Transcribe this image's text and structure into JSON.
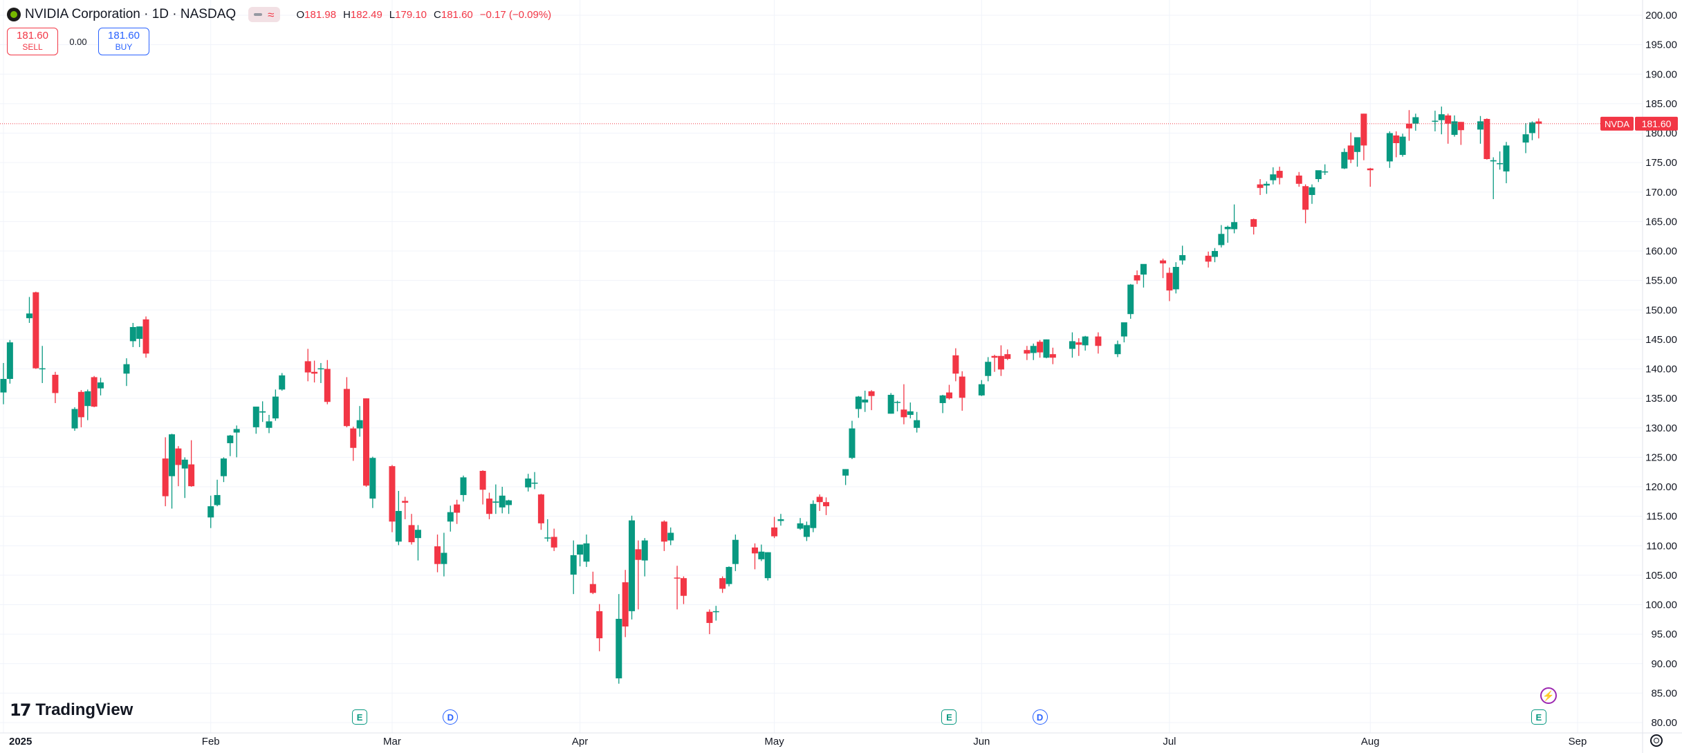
{
  "header": {
    "symbol_title": "NVIDIA Corporation · 1D · NASDAQ",
    "ohlc": {
      "open_label": "O",
      "open": "181.98",
      "high_label": "H",
      "high": "182.49",
      "low_label": "L",
      "low": "179.10",
      "close_label": "C",
      "close": "181.60",
      "change": "−0.17 (−0.09%)"
    }
  },
  "trade": {
    "sell_price": "181.60",
    "sell_label": "SELL",
    "spread": "0.00",
    "buy_price": "181.60",
    "buy_label": "BUY"
  },
  "brand": {
    "name": "TradingView"
  },
  "events": [
    {
      "label": "E",
      "kind": "earnings",
      "date": "2025-02-26"
    },
    {
      "label": "D",
      "kind": "dividend",
      "date": "2025-03-12"
    },
    {
      "label": "E",
      "kind": "earnings",
      "date": "2025-05-28"
    },
    {
      "label": "D",
      "kind": "dividend",
      "date": "2025-06-11"
    },
    {
      "label": "E",
      "kind": "earnings",
      "date": "2025-08-27"
    }
  ],
  "colors": {
    "up": "#089981",
    "down": "#f23645",
    "grid": "#f0f3fa",
    "price_line": "#f23645"
  },
  "chart_data": {
    "type": "candlestick",
    "symbol": "NVDA",
    "last_price": 181.6,
    "ylim": [
      80,
      200
    ],
    "y_ticks": [
      80,
      85,
      90,
      95,
      100,
      105,
      110,
      115,
      120,
      125,
      130,
      135,
      140,
      145,
      150,
      155,
      160,
      165,
      170,
      175,
      180,
      185,
      190,
      195,
      200
    ],
    "y_tick_labels": [
      "80.00",
      "85.00",
      "90.00",
      "95.00",
      "100.00",
      "105.00",
      "110.00",
      "115.00",
      "120.00",
      "125.00",
      "130.00",
      "135.00",
      "140.00",
      "145.00",
      "150.00",
      "155.00",
      "160.00",
      "165.00",
      "170.00",
      "175.00",
      "180.00",
      "185.00",
      "190.00",
      "195.00",
      "200.00"
    ],
    "x_range": [
      "2025-01-02",
      "2025-09-02"
    ],
    "x_ticks": [
      {
        "date": "2025-01-02",
        "label": "2025",
        "bold": true
      },
      {
        "date": "2025-02-03",
        "label": "Feb"
      },
      {
        "date": "2025-03-03",
        "label": "Mar"
      },
      {
        "date": "2025-04-01",
        "label": "Apr"
      },
      {
        "date": "2025-05-01",
        "label": "May"
      },
      {
        "date": "2025-06-02",
        "label": "Jun"
      },
      {
        "date": "2025-07-01",
        "label": "Jul"
      },
      {
        "date": "2025-08-01",
        "label": "Aug"
      },
      {
        "date": "2025-09-02",
        "label": "Sep"
      }
    ],
    "candles": [
      [
        "2025-01-02",
        136.0,
        141.0,
        134.0,
        138.3
      ],
      [
        "2025-01-03",
        138.3,
        144.9,
        137.5,
        144.5
      ],
      [
        "2025-01-06",
        148.6,
        152.2,
        147.8,
        149.4
      ],
      [
        "2025-01-07",
        153.0,
        153.1,
        140.0,
        140.1
      ],
      [
        "2025-01-08",
        140.1,
        143.9,
        137.6,
        140.1
      ],
      [
        "2025-01-10",
        139.0,
        139.5,
        134.2,
        135.9
      ],
      [
        "2025-01-13",
        129.9,
        133.5,
        129.5,
        133.2
      ],
      [
        "2025-01-14",
        136.1,
        136.4,
        130.1,
        131.8
      ],
      [
        "2025-01-15",
        133.7,
        136.5,
        131.3,
        136.2
      ],
      [
        "2025-01-16",
        138.6,
        138.8,
        133.5,
        133.6
      ],
      [
        "2025-01-17",
        136.7,
        138.5,
        135.5,
        137.7
      ],
      [
        "2025-01-21",
        139.2,
        141.8,
        137.1,
        140.8
      ],
      [
        "2025-01-22",
        144.7,
        147.8,
        143.7,
        147.1
      ],
      [
        "2025-01-23",
        145.1,
        147.2,
        143.7,
        147.2
      ],
      [
        "2025-01-24",
        148.4,
        148.9,
        141.9,
        142.6
      ],
      [
        "2025-01-27",
        124.8,
        128.4,
        116.7,
        118.4
      ],
      [
        "2025-01-28",
        121.8,
        129.0,
        116.3,
        128.9
      ],
      [
        "2025-01-29",
        126.5,
        126.9,
        120.1,
        123.7
      ],
      [
        "2025-01-30",
        123.1,
        125.0,
        118.1,
        124.6
      ],
      [
        "2025-01-31",
        123.8,
        127.9,
        120.0,
        120.1
      ],
      [
        "2025-02-03",
        114.8,
        118.5,
        113.0,
        116.7
      ],
      [
        "2025-02-04",
        116.9,
        121.2,
        116.7,
        118.6
      ],
      [
        "2025-02-05",
        121.8,
        125.0,
        120.8,
        124.8
      ],
      [
        "2025-02-06",
        127.4,
        128.8,
        125.2,
        128.7
      ],
      [
        "2025-02-07",
        129.2,
        130.4,
        125.0,
        129.8
      ],
      [
        "2025-02-10",
        130.1,
        133.0,
        129.0,
        133.6
      ],
      [
        "2025-02-11",
        132.6,
        134.5,
        131.0,
        132.8
      ],
      [
        "2025-02-12",
        130.0,
        132.2,
        129.1,
        131.1
      ],
      [
        "2025-02-13",
        131.6,
        136.5,
        131.2,
        135.3
      ],
      [
        "2025-02-14",
        136.5,
        139.3,
        136.3,
        138.9
      ],
      [
        "2025-02-18",
        141.3,
        143.4,
        137.9,
        139.4
      ],
      [
        "2025-02-19",
        139.5,
        141.4,
        137.7,
        139.2
      ],
      [
        "2025-02-20",
        140.0,
        141.0,
        137.6,
        140.1
      ],
      [
        "2025-02-21",
        140.0,
        141.5,
        134.0,
        134.4
      ],
      [
        "2025-02-24",
        136.6,
        138.6,
        130.1,
        130.3
      ],
      [
        "2025-02-25",
        129.9,
        130.2,
        124.4,
        126.6
      ],
      [
        "2025-02-26",
        129.9,
        133.7,
        128.5,
        131.3
      ],
      [
        "2025-02-27",
        135.0,
        135.0,
        120.0,
        120.2
      ],
      [
        "2025-02-28",
        118.0,
        125.1,
        116.4,
        124.9
      ],
      [
        "2025-03-03",
        123.5,
        123.7,
        112.3,
        114.1
      ],
      [
        "2025-03-04",
        110.7,
        119.3,
        110.1,
        115.9
      ],
      [
        "2025-03-05",
        117.6,
        118.3,
        114.5,
        117.3
      ],
      [
        "2025-03-06",
        113.5,
        115.4,
        110.2,
        110.6
      ],
      [
        "2025-03-07",
        111.3,
        113.5,
        107.5,
        112.7
      ],
      [
        "2025-03-10",
        109.9,
        111.9,
        105.5,
        106.9
      ],
      [
        "2025-03-11",
        106.9,
        112.2,
        104.8,
        108.8
      ],
      [
        "2025-03-12",
        114.1,
        116.8,
        112.4,
        115.7
      ],
      [
        "2025-03-13",
        117.0,
        117.8,
        113.7,
        115.6
      ],
      [
        "2025-03-14",
        118.6,
        121.9,
        117.5,
        121.6
      ],
      [
        "2025-03-17",
        122.7,
        122.8,
        117.0,
        119.5
      ],
      [
        "2025-03-18",
        118.0,
        119.0,
        114.5,
        115.4
      ],
      [
        "2025-03-19",
        117.3,
        120.4,
        115.4,
        117.5
      ],
      [
        "2025-03-20",
        116.5,
        120.0,
        115.5,
        118.5
      ],
      [
        "2025-03-21",
        116.9,
        117.8,
        115.4,
        117.7
      ],
      [
        "2025-03-24",
        119.9,
        122.2,
        119.2,
        121.4
      ],
      [
        "2025-03-25",
        120.6,
        122.5,
        119.6,
        120.7
      ],
      [
        "2025-03-26",
        118.7,
        118.8,
        112.7,
        113.8
      ],
      [
        "2025-03-27",
        111.4,
        114.5,
        110.7,
        111.4
      ],
      [
        "2025-03-28",
        111.5,
        112.9,
        109.1,
        109.7
      ],
      [
        "2025-03-31",
        105.1,
        110.9,
        101.8,
        108.4
      ],
      [
        "2025-04-01",
        108.5,
        110.2,
        106.5,
        110.2
      ],
      [
        "2025-04-02",
        107.3,
        111.9,
        106.4,
        110.4
      ],
      [
        "2025-04-03",
        103.5,
        105.6,
        101.8,
        102.0
      ],
      [
        "2025-04-04",
        98.9,
        100.1,
        92.1,
        94.3
      ],
      [
        "2025-04-07",
        87.5,
        101.8,
        86.6,
        97.6
      ],
      [
        "2025-04-08",
        103.8,
        105.9,
        94.5,
        96.3
      ],
      [
        "2025-04-09",
        98.9,
        115.1,
        97.5,
        114.3
      ],
      [
        "2025-04-10",
        109.4,
        110.9,
        99.2,
        107.6
      ],
      [
        "2025-04-11",
        107.5,
        111.3,
        104.8,
        110.9
      ],
      [
        "2025-04-14",
        114.1,
        114.3,
        109.1,
        110.7
      ],
      [
        "2025-04-15",
        110.9,
        113.1,
        110.1,
        112.2
      ],
      [
        "2025-04-16",
        104.6,
        106.6,
        99.2,
        104.5
      ],
      [
        "2025-04-17",
        104.5,
        104.8,
        100.1,
        101.5
      ],
      [
        "2025-04-21",
        98.8,
        99.2,
        95.0,
        96.9
      ],
      [
        "2025-04-22",
        98.8,
        99.8,
        97.3,
        98.9
      ],
      [
        "2025-04-23",
        104.5,
        104.8,
        102.0,
        102.7
      ],
      [
        "2025-04-24",
        103.5,
        106.5,
        103.1,
        106.4
      ],
      [
        "2025-04-25",
        106.9,
        111.9,
        105.7,
        111.0
      ],
      [
        "2025-04-28",
        109.7,
        110.4,
        106.0,
        108.7
      ],
      [
        "2025-04-29",
        107.7,
        110.2,
        107.4,
        109.0
      ],
      [
        "2025-04-30",
        104.5,
        108.9,
        104.1,
        108.9
      ],
      [
        "2025-05-01",
        113.1,
        114.9,
        111.3,
        111.6
      ],
      [
        "2025-05-02",
        114.2,
        115.4,
        113.4,
        114.5
      ],
      [
        "2025-05-05",
        112.9,
        114.7,
        112.7,
        113.8
      ],
      [
        "2025-05-06",
        111.5,
        114.1,
        110.8,
        113.5
      ],
      [
        "2025-05-07",
        113.0,
        117.7,
        112.3,
        117.1
      ],
      [
        "2025-05-08",
        118.3,
        118.7,
        115.9,
        117.4
      ],
      [
        "2025-05-09",
        117.4,
        118.2,
        115.2,
        116.7
      ],
      [
        "2025-05-12",
        121.9,
        123.0,
        120.3,
        123.0
      ],
      [
        "2025-05-13",
        124.9,
        131.2,
        124.7,
        129.9
      ],
      [
        "2025-05-14",
        133.2,
        135.4,
        131.7,
        135.3
      ],
      [
        "2025-05-15",
        134.3,
        136.3,
        132.7,
        134.8
      ],
      [
        "2025-05-16",
        136.2,
        136.4,
        133.0,
        135.4
      ],
      [
        "2025-05-19",
        132.4,
        135.9,
        132.4,
        135.6
      ],
      [
        "2025-05-20",
        134.3,
        134.6,
        132.8,
        134.4
      ],
      [
        "2025-05-21",
        133.1,
        137.4,
        130.6,
        131.8
      ],
      [
        "2025-05-22",
        132.2,
        134.3,
        131.6,
        132.8
      ],
      [
        "2025-05-23",
        130.0,
        132.7,
        129.2,
        131.3
      ],
      [
        "2025-05-27",
        134.2,
        135.6,
        132.5,
        135.5
      ],
      [
        "2025-05-28",
        136.0,
        137.3,
        134.8,
        135.0
      ],
      [
        "2025-05-29",
        142.3,
        143.5,
        137.9,
        139.2
      ],
      [
        "2025-05-30",
        138.7,
        139.6,
        132.9,
        135.1
      ],
      [
        "2025-06-02",
        135.5,
        138.1,
        135.4,
        137.4
      ],
      [
        "2025-06-03",
        138.8,
        142.0,
        137.9,
        141.2
      ],
      [
        "2025-06-04",
        142.2,
        142.4,
        139.5,
        141.9
      ],
      [
        "2025-06-05",
        142.2,
        144.0,
        138.8,
        139.9
      ],
      [
        "2025-06-06",
        142.5,
        143.3,
        141.5,
        141.7
      ],
      [
        "2025-06-09",
        143.2,
        143.9,
        141.5,
        142.6
      ],
      [
        "2025-06-10",
        142.7,
        144.3,
        141.5,
        143.9
      ],
      [
        "2025-06-11",
        144.6,
        144.9,
        141.9,
        142.8
      ],
      [
        "2025-06-12",
        141.9,
        145.0,
        141.8,
        145.0
      ],
      [
        "2025-06-13",
        142.5,
        143.6,
        140.8,
        141.9
      ],
      [
        "2025-06-16",
        143.4,
        146.2,
        141.9,
        144.7
      ],
      [
        "2025-06-17",
        144.5,
        145.2,
        142.2,
        144.1
      ],
      [
        "2025-06-18",
        144.0,
        145.6,
        143.1,
        145.5
      ],
      [
        "2025-06-20",
        145.5,
        146.2,
        142.6,
        143.9
      ],
      [
        "2025-06-23",
        142.5,
        144.8,
        142.0,
        144.2
      ],
      [
        "2025-06-24",
        145.5,
        147.2,
        144.5,
        147.9
      ],
      [
        "2025-06-25",
        149.3,
        154.4,
        148.5,
        154.3
      ],
      [
        "2025-06-26",
        155.9,
        156.7,
        154.4,
        155.0
      ],
      [
        "2025-06-27",
        156.0,
        156.9,
        153.8,
        157.8
      ],
      [
        "2025-06-30",
        158.4,
        158.7,
        155.4,
        157.9
      ],
      [
        "2025-07-01",
        156.3,
        157.2,
        151.5,
        153.3
      ],
      [
        "2025-07-02",
        153.5,
        158.1,
        152.8,
        157.3
      ],
      [
        "2025-07-03",
        158.4,
        160.9,
        157.7,
        159.3
      ],
      [
        "2025-07-07",
        159.2,
        159.9,
        157.2,
        158.2
      ],
      [
        "2025-07-08",
        159.0,
        160.5,
        158.1,
        160.0
      ],
      [
        "2025-07-09",
        161.0,
        164.4,
        160.6,
        162.9
      ],
      [
        "2025-07-10",
        163.7,
        164.3,
        161.4,
        164.1
      ],
      [
        "2025-07-11",
        163.7,
        167.9,
        163.0,
        164.9
      ],
      [
        "2025-07-14",
        165.4,
        165.5,
        162.8,
        164.1
      ],
      [
        "2025-07-15",
        171.3,
        172.2,
        169.5,
        170.7
      ],
      [
        "2025-07-16",
        171.1,
        171.8,
        169.7,
        171.4
      ],
      [
        "2025-07-17",
        172.0,
        174.2,
        171.3,
        173.0
      ],
      [
        "2025-07-18",
        173.6,
        174.3,
        171.3,
        172.4
      ],
      [
        "2025-07-21",
        172.8,
        173.4,
        170.9,
        171.4
      ],
      [
        "2025-07-22",
        171.0,
        171.3,
        164.7,
        167.0
      ],
      [
        "2025-07-23",
        169.5,
        171.3,
        168.0,
        170.8
      ],
      [
        "2025-07-24",
        172.2,
        173.5,
        171.7,
        173.7
      ],
      [
        "2025-07-25",
        173.5,
        174.7,
        172.9,
        173.5
      ],
      [
        "2025-07-28",
        174.0,
        177.4,
        173.9,
        176.8
      ],
      [
        "2025-07-29",
        177.9,
        180.1,
        174.9,
        175.5
      ],
      [
        "2025-07-30",
        176.8,
        179.2,
        174.3,
        179.3
      ],
      [
        "2025-07-31",
        183.3,
        183.3,
        175.4,
        177.9
      ],
      [
        "2025-08-01",
        174.0,
        174.1,
        170.9,
        173.7
      ],
      [
        "2025-08-04",
        175.2,
        180.3,
        174.1,
        180.0
      ],
      [
        "2025-08-05",
        179.6,
        180.3,
        175.9,
        178.3
      ],
      [
        "2025-08-06",
        176.3,
        179.9,
        176.0,
        179.4
      ],
      [
        "2025-08-07",
        181.6,
        183.9,
        178.7,
        180.8
      ],
      [
        "2025-08-08",
        181.6,
        183.3,
        180.4,
        182.7
      ],
      [
        "2025-08-11",
        182.0,
        183.8,
        180.3,
        182.1
      ],
      [
        "2025-08-12",
        182.2,
        184.5,
        179.8,
        183.2
      ],
      [
        "2025-08-13",
        183.0,
        183.3,
        178.2,
        181.6
      ],
      [
        "2025-08-14",
        179.7,
        183.0,
        179.4,
        182.0
      ],
      [
        "2025-08-15",
        181.9,
        181.9,
        178.0,
        180.5
      ],
      [
        "2025-08-18",
        180.6,
        182.9,
        178.2,
        182.0
      ],
      [
        "2025-08-19",
        182.4,
        182.5,
        175.5,
        175.6
      ],
      [
        "2025-08-20",
        175.2,
        175.9,
        168.8,
        175.4
      ],
      [
        "2025-08-21",
        174.8,
        176.9,
        173.8,
        174.9
      ],
      [
        "2025-08-22",
        173.5,
        178.5,
        171.5,
        177.9
      ],
      [
        "2025-08-25",
        178.4,
        181.7,
        176.6,
        179.8
      ],
      [
        "2025-08-26",
        180.0,
        182.0,
        178.8,
        181.8
      ],
      [
        "2025-08-27",
        181.98,
        182.49,
        179.1,
        181.6
      ]
    ]
  }
}
